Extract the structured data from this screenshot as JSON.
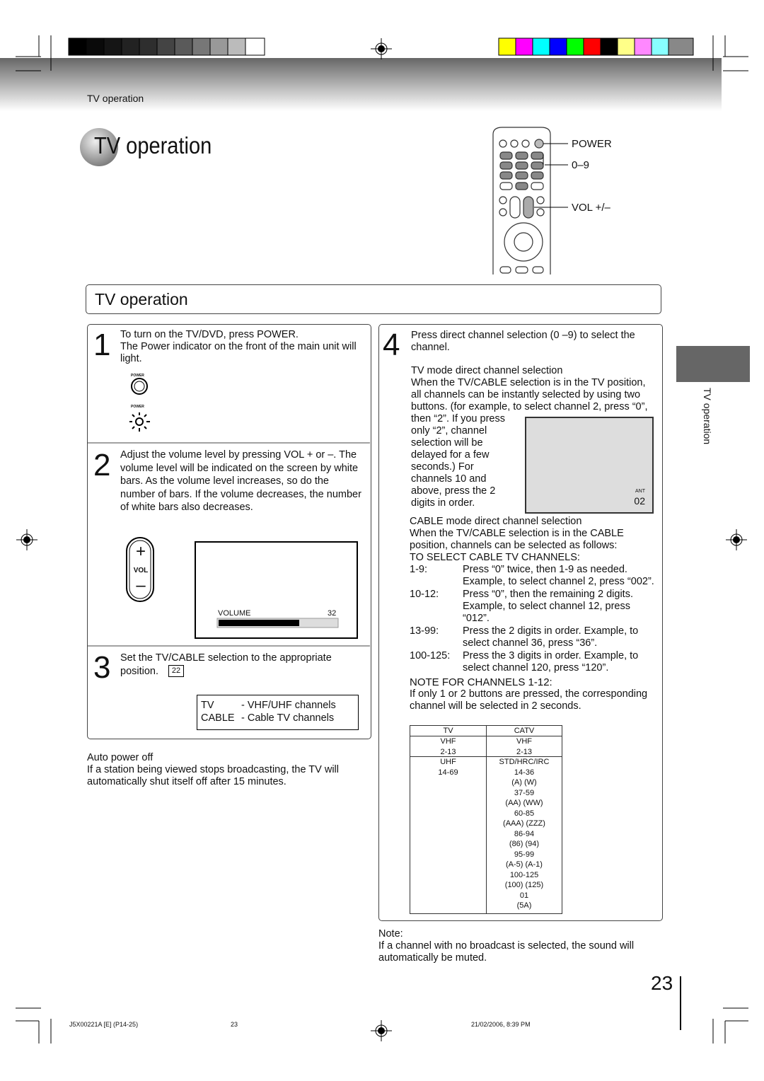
{
  "header": {
    "section": "TV operation"
  },
  "title": "TV operation",
  "remote": {
    "labels": [
      "POWER",
      "0–9",
      "VOL +/–"
    ]
  },
  "section_heading": "TV operation",
  "steps": [
    {
      "number": "1",
      "paragraphs": [
        "To turn on the TV/DVD, press POWER.",
        "The Power indicator on the front of the main unit will light."
      ],
      "icon_labels": [
        "POWER",
        "POWER"
      ]
    },
    {
      "number": "2",
      "paragraphs": [
        "Adjust the volume level by pressing VOL + or –. The volume level will be indicated on the screen by white bars. As the volume level increases, so do the number of bars. If the volume decreases, the number of white bars also decreases."
      ],
      "button_labels": [
        "+",
        "VOL",
        "–"
      ],
      "screen": {
        "label": "VOLUME",
        "value": "32"
      }
    },
    {
      "number": "3",
      "paragraphs": [
        "Set the TV/CABLE selection to the appropriate position."
      ],
      "page_ref": "22",
      "modes": [
        [
          "TV",
          "- VHF/UHF channels"
        ],
        [
          "CABLE",
          "- Cable TV channels"
        ]
      ]
    },
    {
      "number": "4",
      "paragraphs": [
        "Press direct channel selection (0 –9) to select the channel."
      ],
      "tv_mode": {
        "heading": "TV mode direct channel selection",
        "text": "When the TV/CABLE selection is in the TV position, all channels can be instantly selected by using two buttons. (for example, to select channel 2, press “0”, then “2”. If you press only “2”, channel selection will be delayed for a few seconds.) For channels 10 and above, press the 2 digits in order."
      },
      "screen": {
        "input": "ANT",
        "channel": "02"
      },
      "cable_mode": {
        "heading": "CABLE mode direct channel selection",
        "text": "When the TV/CABLE selection is in the CABLE position, channels can be selected as follows:",
        "list_heading": "TO SELECT CABLE TV CHANNELS:",
        "items": [
          [
            "1-9:",
            "Press “0” twice, then 1-9 as needed. Example, to select channel 2, press “002”."
          ],
          [
            "10-12:",
            "Press “0”, then the remaining 2 digits. Example, to select channel 12, press “012”."
          ],
          [
            "13-99:",
            "Press the 2 digits in order. Example, to select channel 36, press “36”."
          ],
          [
            "100-125:",
            "Press the 3 digits in order. Example, to select channel 120, press “120”."
          ]
        ]
      },
      "note_heading": "NOTE FOR CHANNELS 1-12:",
      "note_text": "If only 1 or 2 buttons are pressed, the corresponding channel will be selected in 2 seconds.",
      "table": {
        "columns": [
          {
            "header": "TV",
            "cells": [
              "VHF",
              "2-13",
              "UHF",
              "14-69"
            ]
          },
          {
            "header": "CATV",
            "cells": [
              "VHF",
              "2-13",
              "STD/HRC/IRC",
              "14-36",
              "(A) (W)",
              "37-59",
              "(AA) (WW)",
              "60-85",
              "(AAA) (ZZZ)",
              "86-94",
              "(86) (94)",
              "95-99",
              "(A-5) (A-1)",
              "100-125",
              "(100) (125)",
              "01",
              "(5A)"
            ]
          }
        ]
      }
    }
  ],
  "auto_power_off": {
    "heading": "Auto power off",
    "text": "If a station being viewed stops broadcasting, the TV will automatically shut itself off after 15 minutes."
  },
  "note": {
    "heading": "Note:",
    "text": "If a channel with no broadcast is selected, the sound will automatically be muted."
  },
  "side_tab": "TV operation",
  "page_number": "23",
  "footer": {
    "code": "J5X00221A [E] (P14-25)",
    "page": "23",
    "timestamp": "21/02/2006, 8:39 PM"
  }
}
